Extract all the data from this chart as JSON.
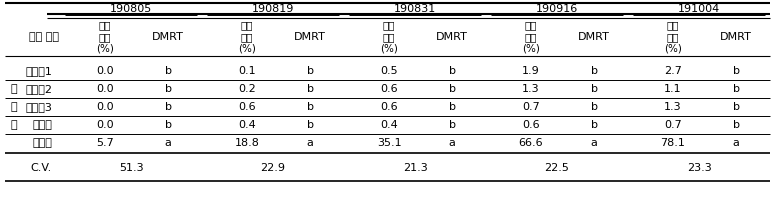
{
  "top_headers": [
    "190805",
    "190819",
    "190831",
    "190916",
    "191004"
  ],
  "subheader_label": "조사 일자",
  "subheader_val": "이병\n과율\n(%)",
  "subheader_dmrt": "DMRT",
  "rows": [
    [
      "시험구1",
      "0.0",
      "b",
      "0.1",
      "b",
      "0.5",
      "b",
      "1.9",
      "b",
      "2.7",
      "b"
    ],
    [
      "시험구2",
      "0.0",
      "b",
      "0.2",
      "b",
      "0.6",
      "b",
      "1.3",
      "b",
      "1.1",
      "b"
    ],
    [
      "시험구3",
      "0.0",
      "b",
      "0.6",
      "b",
      "0.6",
      "b",
      "0.7",
      "b",
      "1.3",
      "b"
    ],
    [
      "대조구",
      "0.0",
      "b",
      "0.4",
      "b",
      "0.4",
      "b",
      "0.6",
      "b",
      "0.7",
      "b"
    ],
    [
      "무처리",
      "5.7",
      "a",
      "18.8",
      "a",
      "35.1",
      "a",
      "66.6",
      "a",
      "78.1",
      "a"
    ]
  ],
  "side_chars": [
    "",
    "처",
    "리",
    "구",
    ""
  ],
  "cv_values": [
    "51.3",
    "22.9",
    "21.3",
    "22.5",
    "23.3"
  ],
  "cv_label": "C.V.",
  "bg_color": "#ffffff",
  "text_color": "#000000",
  "line_color": "#000000"
}
